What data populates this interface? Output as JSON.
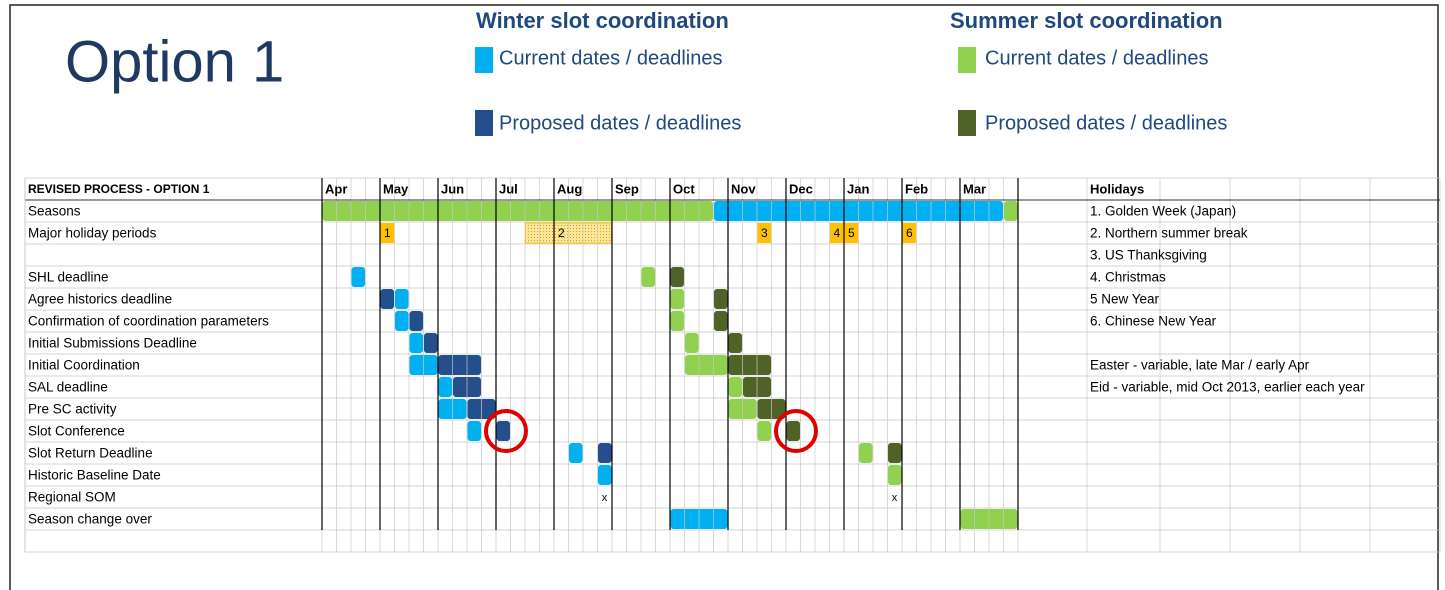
{
  "title": "Option 1",
  "legend": {
    "winter": {
      "heading": "Winter slot coordination",
      "current": "Current dates / deadlines",
      "proposed": "Proposed dates / deadlines"
    },
    "summer": {
      "heading": "Summer slot coordination",
      "current": "Current dates / deadlines",
      "proposed": "Proposed dates / deadlines"
    }
  },
  "table": {
    "heading": "REVISED PROCESS - OPTION 1",
    "months": [
      "Apr",
      "May",
      "Jun",
      "Jul",
      "Aug",
      "Sep",
      "Oct",
      "Nov",
      "Dec",
      "Jan",
      "Feb",
      "Mar"
    ],
    "rows": [
      "Seasons",
      "Major holiday periods",
      "SHL deadline",
      "Agree historics deadline",
      "Confirmation of coordination parameters",
      "Initial Submissions Deadline",
      "Initial Coordination",
      "SAL deadline",
      "Pre SC activity",
      "Slot Conference",
      "Slot Return Deadline",
      "Historic Baseline Date",
      "Regional SOM",
      "Season change over"
    ],
    "holiday_markers": [
      "1",
      "2",
      "3",
      "4",
      "5",
      "6"
    ],
    "som_marks": [
      "x",
      "x"
    ]
  },
  "holidays": {
    "heading": "Holidays",
    "items": [
      "1. Golden Week (Japan)",
      "2. Northern summer break",
      "3. US Thanksgiving",
      "4. Christmas",
      "5 New Year",
      "6. Chinese New Year",
      "Easter - variable, late Mar / early Apr",
      "Eid - variable, mid Oct 2013, earlier each year"
    ]
  }
}
